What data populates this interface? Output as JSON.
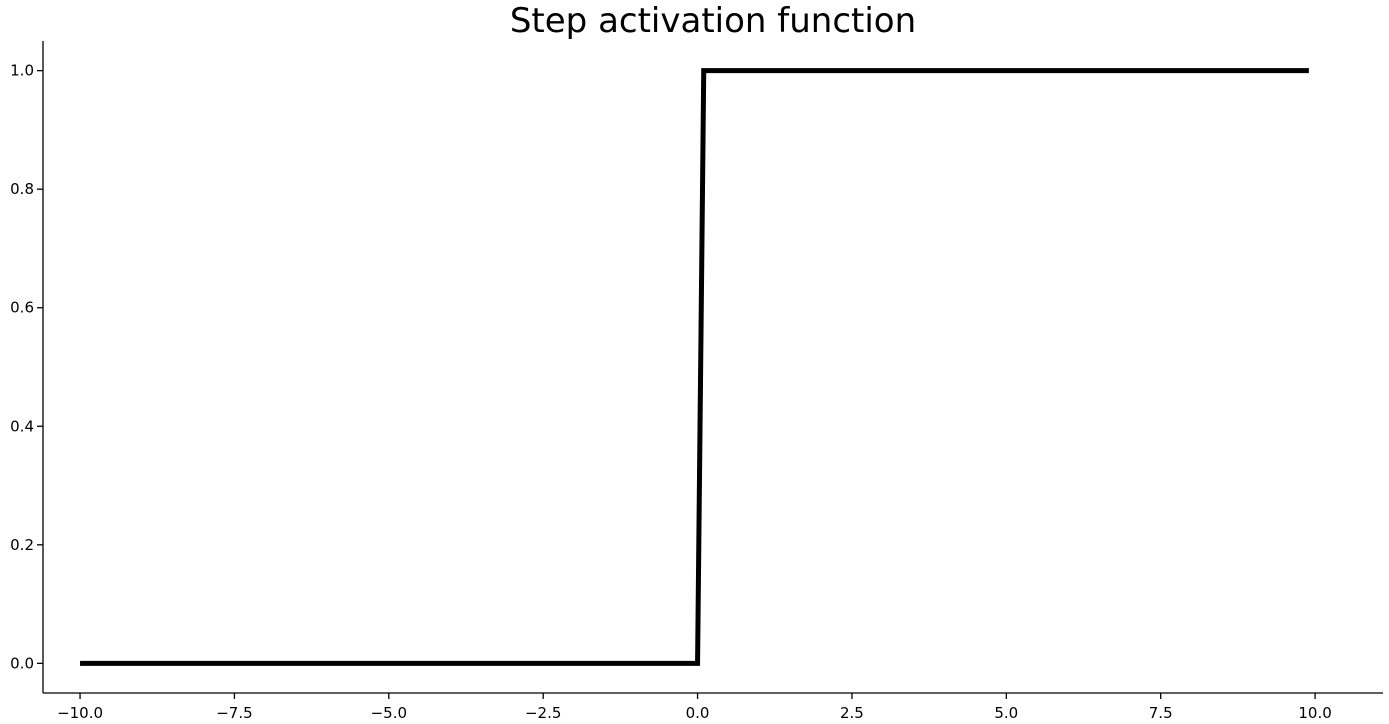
{
  "chart_data": {
    "type": "line",
    "title": "Step activation function",
    "xlabel": "",
    "ylabel": "",
    "xlim": [
      -10.6,
      11.1
    ],
    "ylim": [
      -0.05,
      1.05
    ],
    "grid": false,
    "xticks": [
      -10.0,
      -7.5,
      -5.0,
      -2.5,
      0.0,
      2.5,
      5.0,
      7.5,
      10.0
    ],
    "xtick_labels": [
      "−10.0",
      "−7.5",
      "−5.0",
      "−2.5",
      "0.0",
      "2.5",
      "5.0",
      "7.5",
      "10.0"
    ],
    "yticks": [
      0.0,
      0.2,
      0.4,
      0.6,
      0.8,
      1.0
    ],
    "ytick_labels": [
      "0.0",
      "0.2",
      "0.4",
      "0.6",
      "0.8",
      "1.0"
    ],
    "series": [
      {
        "color": "#000000",
        "x": [
          -10.0,
          0.0,
          0.1,
          9.9
        ],
        "y": [
          0,
          0,
          1,
          1
        ]
      }
    ]
  }
}
